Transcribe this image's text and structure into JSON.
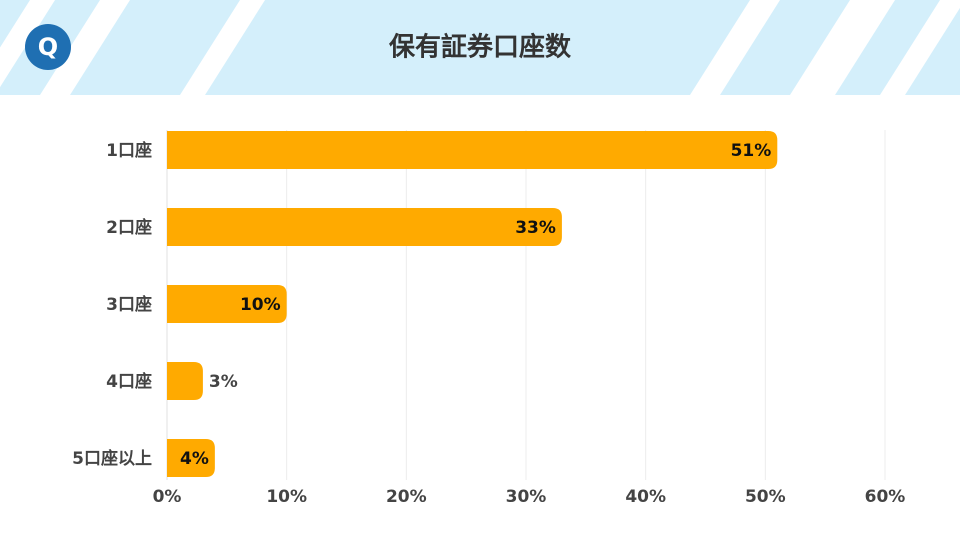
{
  "logo": "Q",
  "chart_data": {
    "type": "bar",
    "orientation": "horizontal",
    "title": "保有証券口座数",
    "categories": [
      "1口座",
      "2口座",
      "3口座",
      "4口座",
      "5口座以上"
    ],
    "values": [
      51,
      33,
      10,
      3,
      4
    ],
    "value_labels": [
      "51%",
      "33%",
      "10%",
      "3%",
      "4%"
    ],
    "color": "#ffaa00",
    "xlim": [
      0,
      60
    ],
    "xticks": [
      {
        "value": 0,
        "label": "0%"
      },
      {
        "value": 10,
        "label": "10%"
      },
      {
        "value": 20,
        "label": "20%"
      },
      {
        "value": 30,
        "label": "30%"
      },
      {
        "value": 40,
        "label": "40%"
      },
      {
        "value": 50,
        "label": "50%"
      },
      {
        "value": 60,
        "label": "60%"
      }
    ],
    "grid": true
  }
}
